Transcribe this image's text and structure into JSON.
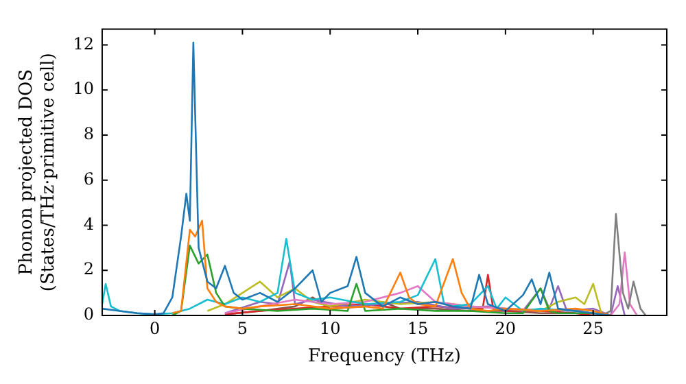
{
  "chart_data": {
    "type": "line",
    "xlabel": "Frequency (THz)",
    "ylabel": "Phonon projected DOS\n(States/THz·primitive cell)",
    "xlim": [
      -3,
      29.2
    ],
    "ylim": [
      0,
      12.7
    ],
    "xticks": [
      0,
      5,
      10,
      15,
      20,
      25
    ],
    "yticks": [
      0,
      2,
      4,
      6,
      8,
      10,
      12
    ],
    "grid": false,
    "legend": false,
    "marker": "none",
    "line_style": "solid",
    "series": [
      {
        "color": "#1f77b4",
        "x": [
          -3,
          -2,
          -1,
          0,
          0.5,
          1,
          1.5,
          1.8,
          2,
          2.2,
          2.5,
          3,
          3.5,
          4,
          4.5,
          5,
          6,
          7,
          8,
          9,
          9.5,
          10,
          11,
          11.5,
          12,
          13,
          14,
          15,
          16,
          17,
          18,
          18.5,
          19,
          20,
          21,
          21.5,
          22,
          22.5,
          23,
          24,
          25,
          26
        ],
        "values": [
          0.3,
          0.2,
          0.1,
          0.05,
          0.1,
          0.8,
          3.5,
          5.4,
          4.2,
          12.1,
          3,
          1.5,
          1.2,
          2.2,
          1,
          0.7,
          1,
          0.6,
          1.2,
          2,
          0.6,
          1,
          1.3,
          2.6,
          1,
          0.4,
          0.8,
          0.5,
          0.6,
          0.4,
          0.3,
          1.8,
          0.5,
          0.2,
          0.9,
          1.6,
          0.5,
          1.9,
          0.3,
          0.2,
          0.1,
          0
        ]
      },
      {
        "color": "#ff7f0e",
        "x": [
          1,
          1.5,
          2,
          2.3,
          2.7,
          3,
          3.5,
          4,
          5,
          6,
          8,
          10,
          12,
          13,
          14,
          14.5,
          15,
          16,
          17,
          17.5,
          18,
          19,
          20,
          22,
          24,
          25,
          26
        ],
        "values": [
          0.1,
          0.2,
          3.8,
          3.5,
          4.2,
          1.2,
          0.6,
          0.4,
          0.3,
          0.4,
          0.5,
          0.3,
          0.4,
          0.3,
          1.9,
          0.8,
          0.5,
          0.4,
          2.5,
          1,
          0.3,
          0.2,
          0.3,
          0.2,
          0.3,
          0.2,
          0
        ]
      },
      {
        "color": "#2ca02c",
        "x": [
          1,
          1.5,
          2,
          2.5,
          3,
          3.5,
          4,
          5,
          7,
          9,
          11,
          11.5,
          12,
          14,
          16,
          18,
          20,
          21,
          22,
          22.5,
          23,
          25,
          26
        ],
        "values": [
          0,
          0.2,
          3.1,
          2.3,
          2.7,
          1,
          0.4,
          0.3,
          0.2,
          0.3,
          0.2,
          1.4,
          0.2,
          0.3,
          0.2,
          0.2,
          0.1,
          0.1,
          1.2,
          0.2,
          0.1,
          0.1,
          0
        ]
      },
      {
        "color": "#17becf",
        "x": [
          -3,
          -2.8,
          -2.5,
          -2,
          -1,
          0,
          1,
          2,
          3,
          4,
          5,
          6,
          7,
          7.5,
          8,
          9,
          10,
          12,
          14,
          15,
          16,
          16.5,
          17,
          18,
          19,
          19.5,
          20,
          21,
          22,
          24,
          26
        ],
        "values": [
          0.5,
          1.4,
          0.4,
          0.2,
          0.1,
          0.05,
          0.1,
          0.3,
          0.7,
          0.5,
          0.8,
          0.6,
          1,
          3.4,
          1,
          0.7,
          0.8,
          0.5,
          0.6,
          0.9,
          2.5,
          0.5,
          0.4,
          0.5,
          1.3,
          0.3,
          0.8,
          0.2,
          0.3,
          0.2,
          0
        ]
      },
      {
        "color": "#7f7f7f",
        "x": [
          25,
          25.5,
          26,
          26.3,
          26.7,
          27,
          27.3,
          27.7,
          28
        ],
        "values": [
          0,
          0,
          0.2,
          4.5,
          1,
          0.3,
          1.5,
          0.3,
          0
        ]
      },
      {
        "color": "#e377c2",
        "x": [
          4,
          6,
          8,
          10,
          12,
          14,
          15,
          16,
          18,
          20,
          24,
          26,
          26.5,
          26.8,
          27.1,
          27.5
        ],
        "values": [
          0.1,
          0.4,
          0.7,
          0.5,
          0.6,
          1,
          1.3,
          0.6,
          0.4,
          0.3,
          0.2,
          0,
          0.5,
          2.8,
          0.5,
          0
        ]
      },
      {
        "color": "#bcbd22",
        "x": [
          3,
          4,
          5,
          6,
          7,
          8,
          9,
          10,
          12,
          14,
          16,
          18,
          20,
          22,
          23,
          24,
          24.5,
          25,
          25.5
        ],
        "values": [
          0.2,
          0.5,
          1,
          1.5,
          0.8,
          1.2,
          0.6,
          0.4,
          0.7,
          0.5,
          0.6,
          0.4,
          0.3,
          0.2,
          0.6,
          0.8,
          0.5,
          1.4,
          0
        ]
      },
      {
        "color": "#9467bd",
        "x": [
          4,
          6,
          7,
          7.7,
          8,
          9,
          11,
          13,
          15,
          17,
          19,
          21,
          22,
          22.5,
          23,
          23.5,
          25,
          26,
          26.4,
          26.8
        ],
        "values": [
          0.1,
          0.6,
          0.5,
          2.4,
          0.5,
          0.7,
          0.4,
          0.5,
          0.6,
          0.3,
          0.4,
          0.2,
          1.2,
          0.3,
          1.3,
          0.2,
          0.3,
          0,
          1.3,
          0
        ]
      },
      {
        "color": "#d62728",
        "x": [
          4,
          6,
          8,
          10,
          12,
          14,
          16,
          18,
          18.7,
          19,
          19.3,
          20,
          22,
          24,
          25
        ],
        "values": [
          0.05,
          0.2,
          0.3,
          0.4,
          0.5,
          0.3,
          0.4,
          0.3,
          0.3,
          1.8,
          0.3,
          0.2,
          0.2,
          0.1,
          0
        ]
      },
      {
        "color": "#8c564b",
        "x": [
          4,
          6,
          8,
          9,
          10,
          12,
          13,
          14,
          16,
          18,
          20,
          22,
          24
        ],
        "values": [
          0.05,
          0.2,
          0.4,
          0.8,
          0.3,
          0.4,
          0.6,
          0.3,
          0.3,
          0.2,
          0.2,
          0.1,
          0.1
        ]
      }
    ]
  }
}
